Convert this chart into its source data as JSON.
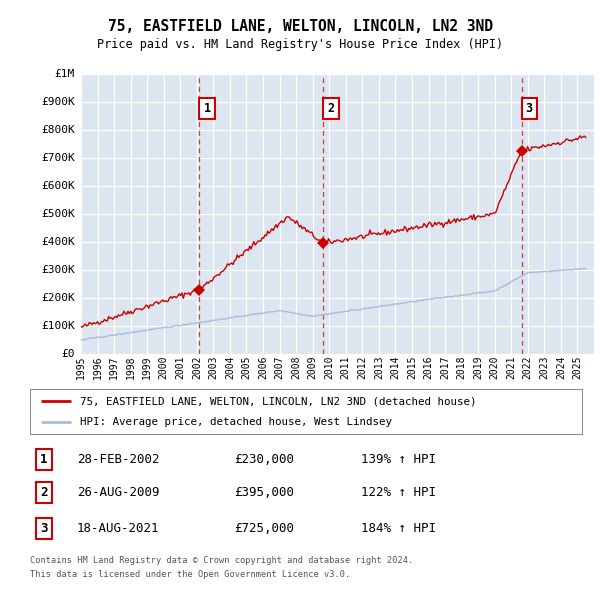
{
  "title": "75, EASTFIELD LANE, WELTON, LINCOLN, LN2 3ND",
  "subtitle": "Price paid vs. HM Land Registry's House Price Index (HPI)",
  "plot_bg_color": "#dce6f0",
  "red_line_color": "#cc0000",
  "blue_line_color": "#aabbdd",
  "sale_marker_color": "#cc0000",
  "ylim_min": 0,
  "ylim_max": 1000000,
  "yticks": [
    0,
    100000,
    200000,
    300000,
    400000,
    500000,
    600000,
    700000,
    800000,
    900000,
    1000000
  ],
  "ytick_labels": [
    "£0",
    "£100K",
    "£200K",
    "£300K",
    "£400K",
    "£500K",
    "£600K",
    "£700K",
    "£800K",
    "£900K",
    "£1M"
  ],
  "xlim_min": 1995.0,
  "xlim_max": 2026.0,
  "xtick_years": [
    1995,
    1996,
    1997,
    1998,
    1999,
    2000,
    2001,
    2002,
    2003,
    2004,
    2005,
    2006,
    2007,
    2008,
    2009,
    2010,
    2011,
    2012,
    2013,
    2014,
    2015,
    2016,
    2017,
    2018,
    2019,
    2020,
    2021,
    2022,
    2023,
    2024,
    2025
  ],
  "sale1_x": 2002.1589,
  "sale1_y": 230000,
  "sale1_label": "1",
  "sale1_date": "28-FEB-2002",
  "sale1_price": "£230,000",
  "sale1_hpi": "139% ↑ HPI",
  "sale2_x": 2009.6521,
  "sale2_y": 395000,
  "sale2_label": "2",
  "sale2_date": "26-AUG-2009",
  "sale2_price": "£395,000",
  "sale2_hpi": "122% ↑ HPI",
  "sale3_x": 2021.6219,
  "sale3_y": 725000,
  "sale3_label": "3",
  "sale3_date": "18-AUG-2021",
  "sale3_price": "£725,000",
  "sale3_hpi": "184% ↑ HPI",
  "legend_red_label": "75, EASTFIELD LANE, WELTON, LINCOLN, LN2 3ND (detached house)",
  "legend_blue_label": "HPI: Average price, detached house, West Lindsey",
  "footer_line1": "Contains HM Land Registry data © Crown copyright and database right 2024.",
  "footer_line2": "This data is licensed under the Open Government Licence v3.0."
}
